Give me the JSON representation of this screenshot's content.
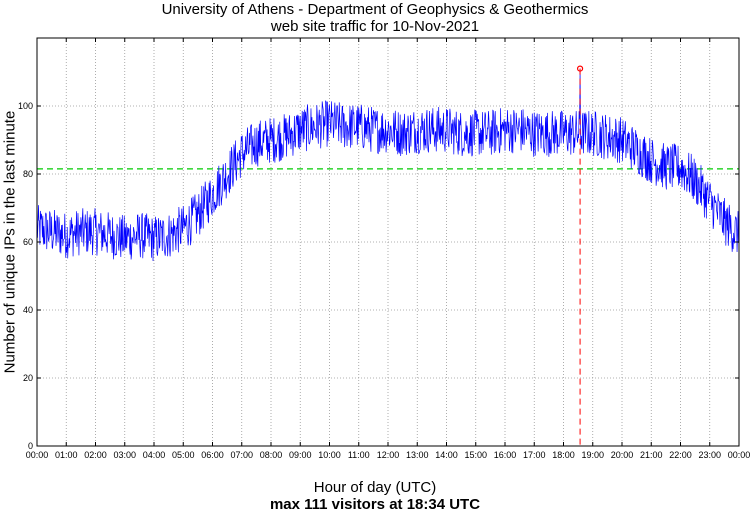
{
  "chart_data": {
    "type": "line",
    "title": "University of Athens - Department of Geophysics & Geothermics",
    "subtitle": "web site traffic for 10-Nov-2021",
    "xlabel": "Hour of day (UTC)",
    "ylabel": "Number of unique IPs in the last minute",
    "caption": "max 111 visitors at 18:34 UTC",
    "xlim": [
      0,
      24
    ],
    "ylim": [
      0,
      120
    ],
    "x_ticks": [
      "00:00",
      "01:00",
      "02:00",
      "03:00",
      "04:00",
      "05:00",
      "06:00",
      "07:00",
      "08:00",
      "09:00",
      "10:00",
      "11:00",
      "12:00",
      "13:00",
      "14:00",
      "15:00",
      "16:00",
      "17:00",
      "18:00",
      "19:00",
      "20:00",
      "21:00",
      "22:00",
      "23:00",
      "00:00"
    ],
    "y_ticks": [
      0,
      20,
      40,
      60,
      80,
      100
    ],
    "grid": true,
    "mean_line": {
      "value": 81.5,
      "color": "#00cc00"
    },
    "max_marker": {
      "x": 18.567,
      "y": 111,
      "color": "#ff0000"
    },
    "series": [
      {
        "color": "#0000ff",
        "x": [
          0,
          0.5,
          1,
          1.5,
          2,
          2.5,
          3,
          3.5,
          4,
          4.5,
          5,
          5.5,
          6,
          6.5,
          7,
          7.5,
          8,
          8.5,
          9,
          9.5,
          10,
          10.5,
          11,
          11.5,
          12,
          12.5,
          13,
          13.5,
          14,
          14.5,
          15,
          15.5,
          16,
          16.5,
          17,
          17.5,
          18,
          18.5,
          19,
          19.5,
          20,
          20.5,
          21,
          21.5,
          22,
          22.5,
          23,
          23.5,
          24
        ],
        "y": [
          64,
          63,
          62,
          63,
          63,
          62,
          61,
          62,
          61,
          62,
          64,
          68,
          74,
          80,
          86,
          89,
          90,
          91,
          93,
          94,
          95,
          94,
          94,
          93,
          93,
          92,
          93,
          93,
          93,
          92,
          92,
          92,
          93,
          93,
          92,
          92,
          92,
          92,
          92,
          91,
          90,
          87,
          84,
          82,
          82,
          78,
          72,
          66,
          62
        ]
      }
    ]
  }
}
